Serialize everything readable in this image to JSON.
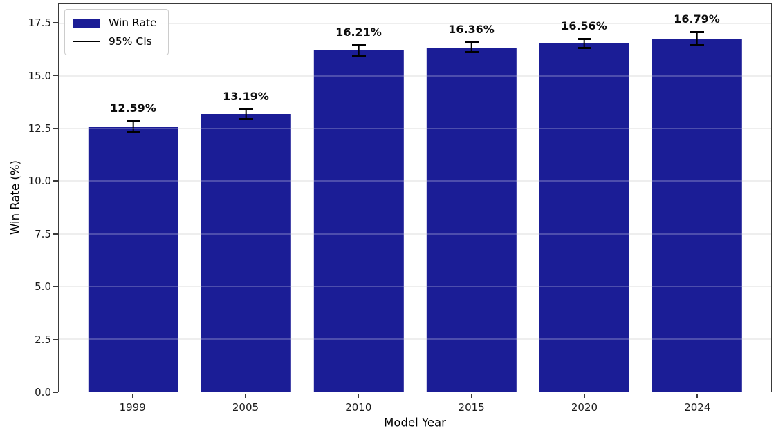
{
  "figure": {
    "background": "#ffffff"
  },
  "chart_data": {
    "type": "bar",
    "title": "",
    "xlabel": "Model Year",
    "ylabel": "Win Rate (%)",
    "categories": [
      "1999",
      "2005",
      "2010",
      "2015",
      "2020",
      "2024"
    ],
    "values": [
      12.59,
      13.19,
      16.21,
      16.36,
      16.56,
      16.79
    ],
    "bar_labels": [
      "12.59%",
      "13.19%",
      "16.21%",
      "16.36%",
      "16.56%",
      "16.79%"
    ],
    "ci_half_width": [
      0.3,
      0.28,
      0.3,
      0.28,
      0.26,
      0.36
    ],
    "ylim": [
      0,
      18.42
    ],
    "yticks": [
      0,
      2.5,
      5,
      7.5,
      10,
      12.5,
      15,
      17.5
    ],
    "ytick_labels": [
      "0.0",
      "2.5",
      "5.0",
      "7.5",
      "10.0",
      "12.5",
      "15.0",
      "17.5"
    ],
    "grid": "horizontal-light-gray",
    "bar_color": "#1b1d96",
    "error_color": "#000000",
    "legend": {
      "position": "upper-left",
      "entries": [
        {
          "label": "Win Rate",
          "type": "patch",
          "color": "#1b1d96"
        },
        {
          "label": "95% CIs",
          "type": "line",
          "color": "#000000"
        }
      ]
    }
  }
}
